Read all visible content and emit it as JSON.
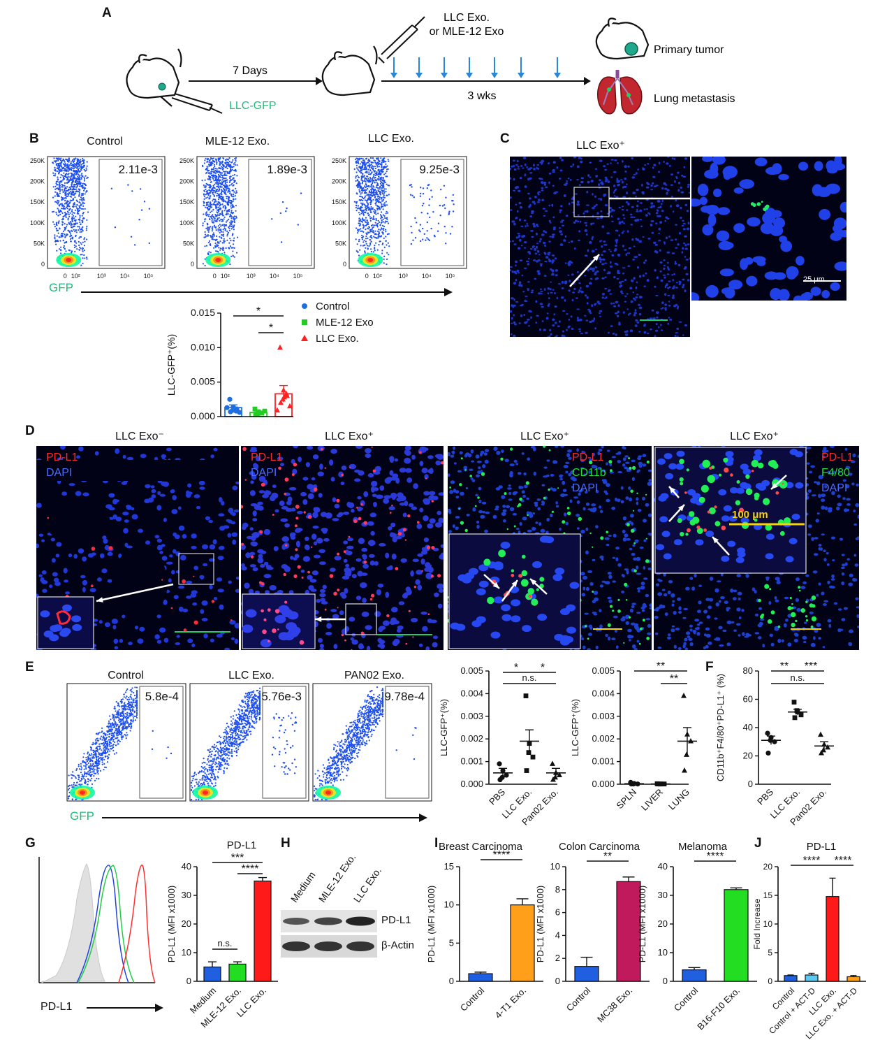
{
  "panels": [
    "A",
    "B",
    "C",
    "D",
    "E",
    "F",
    "G",
    "H",
    "I",
    "J"
  ],
  "A": {
    "days": "7 Days",
    "llc_gfp": "LLC-GFP",
    "exo_line1": "LLC Exo.",
    "exo_line2": "or MLE-12 Exo",
    "weeks": "3 wks",
    "primary": "Primary tumor",
    "lung": "Lung metastasis"
  },
  "B": {
    "plots": [
      {
        "title": "Control",
        "value": "2.11e-3"
      },
      {
        "title": "MLE-12 Exo.",
        "value": "1.89e-3"
      },
      {
        "title": "LLC Exo.",
        "value": "9.25e-3"
      }
    ],
    "yticks": [
      "250K",
      "200K",
      "150K",
      "100K",
      "50K",
      "0"
    ],
    "xticks": [
      "0",
      "10²",
      "10³",
      "10⁴",
      "10⁵"
    ],
    "gfp": "GFP"
  },
  "C": {
    "title": "LLC Exo⁺",
    "scale": "25 μm"
  },
  "D": {
    "titles": [
      "LLC Exo⁻",
      "LLC Exo⁺",
      "LLC Exo⁺",
      "LLC Exo⁺"
    ],
    "labels": {
      "pdl1": "PD-L1",
      "dapi": "DAPI",
      "cd11b": "CD11b",
      "f480": "F4/80"
    },
    "scale100": "100 μm"
  },
  "E": {
    "plots": [
      {
        "title": "Control",
        "value": "5.8e-4"
      },
      {
        "title": "LLC Exo.",
        "value": "5.76e-3"
      },
      {
        "title": "PAN02 Exo.",
        "value": "9.78e-4"
      }
    ],
    "gfp": "GFP"
  },
  "G": {
    "hist_label": "PD-L1"
  },
  "H": {
    "lanes": [
      "Medium",
      "MLE-12 Exo.",
      "LLC Exo."
    ],
    "bands": [
      "PD-L1",
      "β-Actin"
    ]
  },
  "chart_data": [
    {
      "id": "B-bottom",
      "type": "scatter",
      "categories": [
        "Control",
        "MLE-12 Exo",
        "LLC Exo."
      ],
      "ylabel": "LLC-GFP⁺(%)",
      "ylim": [
        0,
        0.015
      ],
      "yticks": [
        "0.000",
        "0.005",
        "0.010",
        "0.015"
      ],
      "series": [
        {
          "name": "Control",
          "color": "#1f6fe0",
          "mean": 0.0013,
          "sem": 0.0004,
          "points": [
            0.0025,
            0.0014,
            0.0011,
            0.0009,
            0.0007,
            0.0006,
            0.0013,
            0.0008
          ]
        },
        {
          "name": "MLE-12 Exo",
          "color": "#22cc22",
          "mean": 0.0006,
          "sem": 0.0002,
          "points": [
            0.0011,
            0.0007,
            0.0005,
            0.0004,
            0.0003,
            0.0008
          ]
        },
        {
          "name": "LLC Exo.",
          "color": "#ff2020",
          "mean": 0.0033,
          "sem": 0.0012,
          "points": [
            0.01,
            0.0038,
            0.003,
            0.0025,
            0.002,
            0.0015,
            0.0009,
            0.0033,
            0.0028
          ]
        }
      ],
      "sig": [
        "*",
        "*"
      ]
    },
    {
      "id": "E-1",
      "type": "scatter",
      "categories": [
        "PBS",
        "LLC Exo.",
        "Pan02 Exo."
      ],
      "ylabel": "LLC-GFP⁺(%)",
      "ylim": [
        0,
        0.005
      ],
      "yticks": [
        "0.000",
        "0.001",
        "0.002",
        "0.003",
        "0.004",
        "0.005"
      ],
      "series": [
        {
          "name": "PBS",
          "mean": 0.0005,
          "sem": 0.0002,
          "points": [
            0.0009,
            0.0006,
            0.0004,
            0.0003,
            0.0002
          ]
        },
        {
          "name": "LLC Exo.",
          "mean": 0.0019,
          "sem": 0.0005,
          "points": [
            0.0039,
            0.0018,
            0.0012,
            0.0014,
            0.0006
          ]
        },
        {
          "name": "Pan02 Exo.",
          "mean": 0.0005,
          "sem": 0.0002,
          "points": [
            0.0009,
            0.0005,
            0.0004,
            0.0003,
            0.0002
          ]
        }
      ],
      "sig": [
        "*",
        "*",
        "n.s."
      ]
    },
    {
      "id": "E-2",
      "type": "scatter",
      "categories": [
        "SPLN",
        "LIVER",
        "LUNG"
      ],
      "ylabel": "LLC-GFP⁺(%)",
      "ylim": [
        0,
        0.005
      ],
      "yticks": [
        "0.000",
        "0.001",
        "0.002",
        "0.003",
        "0.004",
        "0.005"
      ],
      "series": [
        {
          "name": "SPLN",
          "mean": 2e-05,
          "sem": 1e-05,
          "points": [
            8e-05,
            3e-05,
            1e-05,
            1e-05,
            1e-05
          ]
        },
        {
          "name": "LIVER",
          "mean": 1e-05,
          "sem": 1e-05,
          "points": [
            2e-05,
            1e-05,
            1e-05,
            1e-05,
            1e-05
          ]
        },
        {
          "name": "LUNG",
          "mean": 0.0019,
          "sem": 0.0006,
          "points": [
            0.0039,
            0.0022,
            0.0019,
            0.0013,
            0.0006
          ]
        }
      ],
      "sig": [
        "**",
        "**"
      ]
    },
    {
      "id": "F",
      "type": "scatter",
      "categories": [
        "PBS",
        "LLC Exo.",
        "Pan02 Exo."
      ],
      "ylabel": "CD11b⁺F4/80⁺PD-L1⁺ (%)",
      "ylim": [
        0,
        80
      ],
      "yticks": [
        "0",
        "20",
        "40",
        "60",
        "80"
      ],
      "series": [
        {
          "name": "PBS",
          "mean": 31,
          "sem": 3,
          "points": [
            36,
            33,
            30,
            31,
            22
          ]
        },
        {
          "name": "LLC Exo.",
          "mean": 51,
          "sem": 2,
          "points": [
            58,
            51,
            49,
            52,
            47
          ]
        },
        {
          "name": "Pan02 Exo.",
          "mean": 27,
          "sem": 3,
          "points": [
            35,
            28,
            26,
            24,
            22
          ]
        }
      ],
      "sig": [
        "**",
        "***",
        "n.s."
      ]
    },
    {
      "id": "G",
      "type": "bar",
      "title": "PD-L1",
      "categories": [
        "Medium",
        "MLE-12 Exo.",
        "LLC Exo."
      ],
      "values": [
        5,
        6,
        35
      ],
      "errors": [
        1.8,
        0.8,
        1.2
      ],
      "colors": [
        "#1f5fe0",
        "#22dd22",
        "#ff1a1a"
      ],
      "ylabel": "PD-L1 (MFI x1000)",
      "ylim": [
        0,
        40
      ],
      "yticks": [
        "0",
        "10",
        "20",
        "30",
        "40"
      ],
      "sig": [
        "n.s.",
        "***",
        "****"
      ]
    },
    {
      "id": "I-1",
      "type": "bar",
      "title": "Breast Carcinoma",
      "categories": [
        "Control",
        "4-T1 Exo."
      ],
      "values": [
        1.0,
        10.0
      ],
      "errors": [
        0.2,
        0.8
      ],
      "colors": [
        "#1f5fe0",
        "#ff9f1a"
      ],
      "ylabel": "PD-L1 (MFI x1000)",
      "ylim": [
        0,
        15
      ],
      "yticks": [
        "0",
        "5",
        "10",
        "15"
      ],
      "sig": [
        "****"
      ]
    },
    {
      "id": "I-2",
      "type": "bar",
      "title": "Colon Carcinoma",
      "categories": [
        "Control",
        "MC38 Exo."
      ],
      "values": [
        1.3,
        8.7
      ],
      "errors": [
        0.8,
        0.4
      ],
      "colors": [
        "#1f5fe0",
        "#c01a5c"
      ],
      "ylabel": "PD-L1 (MFI x1000)",
      "ylim": [
        0,
        10
      ],
      "yticks": [
        "0",
        "2",
        "4",
        "6",
        "8",
        "10"
      ],
      "sig": [
        "**"
      ]
    },
    {
      "id": "I-3",
      "type": "bar",
      "title": "Melanoma",
      "categories": [
        "Control",
        "B16-F10 Exo."
      ],
      "values": [
        4.0,
        32.0
      ],
      "errors": [
        0.8,
        0.6
      ],
      "colors": [
        "#1f5fe0",
        "#22dd22"
      ],
      "ylabel": "PD-L1 (MFI x1000)",
      "ylim": [
        0,
        40
      ],
      "yticks": [
        "0",
        "10",
        "20",
        "30",
        "40"
      ],
      "sig": [
        "****"
      ]
    },
    {
      "id": "J",
      "type": "bar",
      "title": "PD-L1",
      "categories": [
        "Control",
        "Control + ACT-D",
        "LLC Exo.",
        "LLC Exo. + ACT-D"
      ],
      "values": [
        1.0,
        1.1,
        14.8,
        0.8
      ],
      "errors": [
        0.1,
        0.3,
        3.2,
        0.2
      ],
      "colors": [
        "#1f5fe0",
        "#5fc8f0",
        "#ff1a1a",
        "#ff9f1a"
      ],
      "ylabel": "Fold Increase",
      "ylim": [
        0,
        20
      ],
      "yticks": [
        "0",
        "5",
        "10",
        "15",
        "20"
      ],
      "sig": [
        "****",
        "****"
      ]
    }
  ]
}
